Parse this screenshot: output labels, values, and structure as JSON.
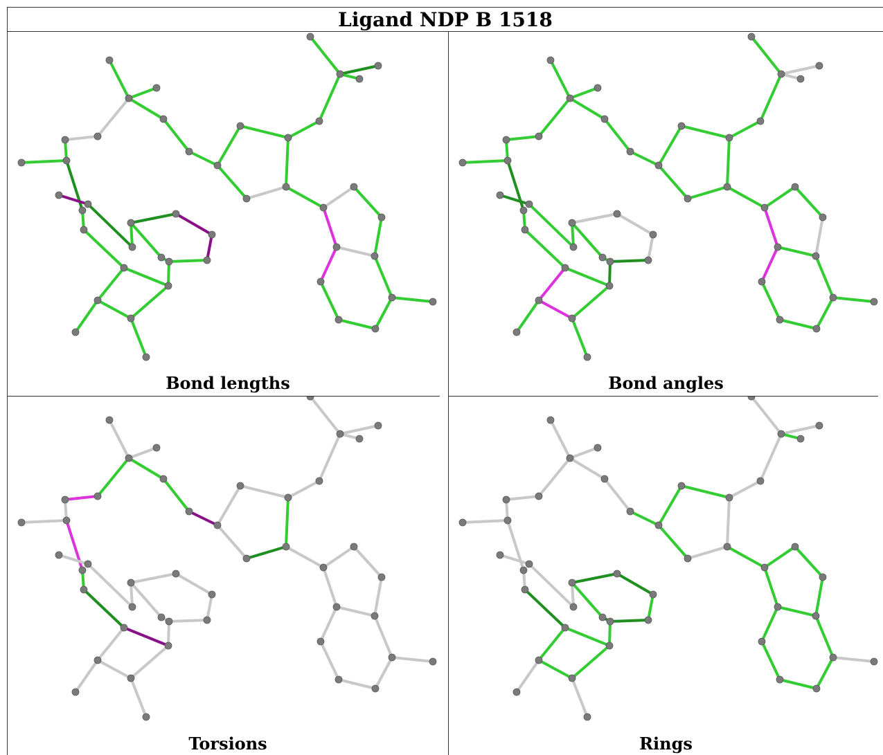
{
  "title": "Ligand NDP B 1518",
  "panels": [
    {
      "id": "bond-lengths",
      "caption": "Bond lengths"
    },
    {
      "id": "bond-angles",
      "caption": "Bond angles"
    },
    {
      "id": "torsions",
      "caption": "Torsions"
    },
    {
      "id": "rings",
      "caption": "Rings"
    }
  ],
  "colors": {
    "good": "#33cc33",
    "dark_good": "#1f8f1f",
    "outlier": "#dd33dd",
    "dark_outlier": "#881188",
    "unscored": "#c8c8c8",
    "atom": "#7a7a7a"
  }
}
